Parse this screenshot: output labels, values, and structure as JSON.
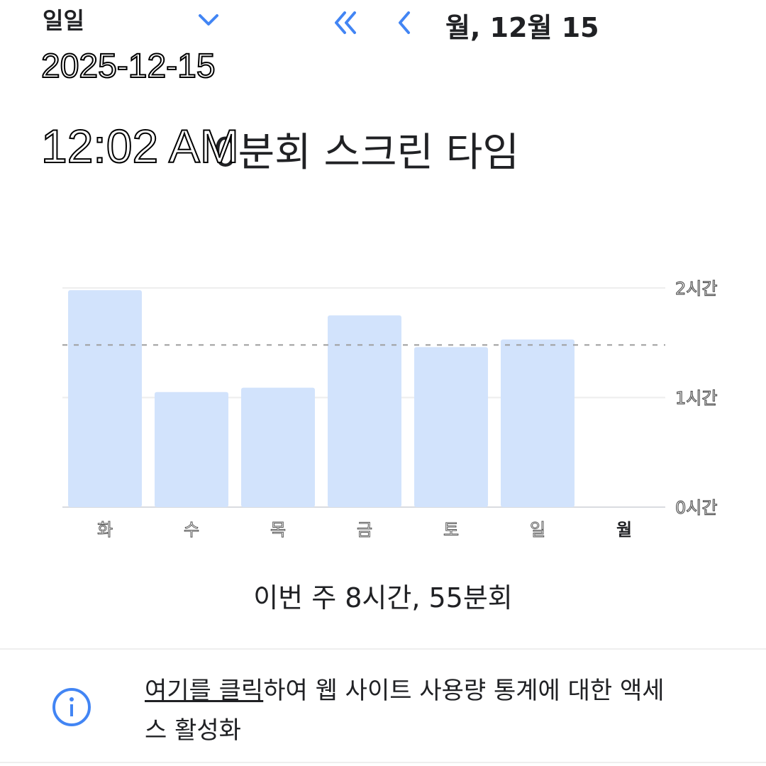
{
  "header": {
    "period_selector": "일일",
    "icons": {
      "dropdown": "chevron-down-icon",
      "first": "double-chevron-left-icon",
      "previous": "chevron-left-icon"
    },
    "date_label": "월, 12월 15"
  },
  "overlay": {
    "date": "2025-12-15",
    "time": "12:02 AM"
  },
  "title": "0분회 스크린 타임",
  "chart_data": {
    "type": "bar",
    "categories": [
      "화",
      "수",
      "목",
      "금",
      "토",
      "일",
      "월"
    ],
    "values": [
      1.98,
      1.05,
      1.09,
      1.75,
      1.46,
      1.53,
      0
    ],
    "unit": "hours",
    "average": 1.48,
    "ylim": [
      0,
      2
    ],
    "y_ticks": [
      {
        "value": 2,
        "label": "2시간"
      },
      {
        "value": 1,
        "label": "1시간"
      },
      {
        "value": 0,
        "label": "0시간"
      }
    ],
    "highlighted_category": "월",
    "bar_color": "#d2e3fc",
    "grid": true
  },
  "summary": "이번 주 8시간, 55분회",
  "info": {
    "icon": "info-icon",
    "link_text": "여기를 클릭",
    "text": "하여 웹 사이트 사용량 통계에 대한 액세스 활성화",
    "accent": "#4285f4"
  }
}
